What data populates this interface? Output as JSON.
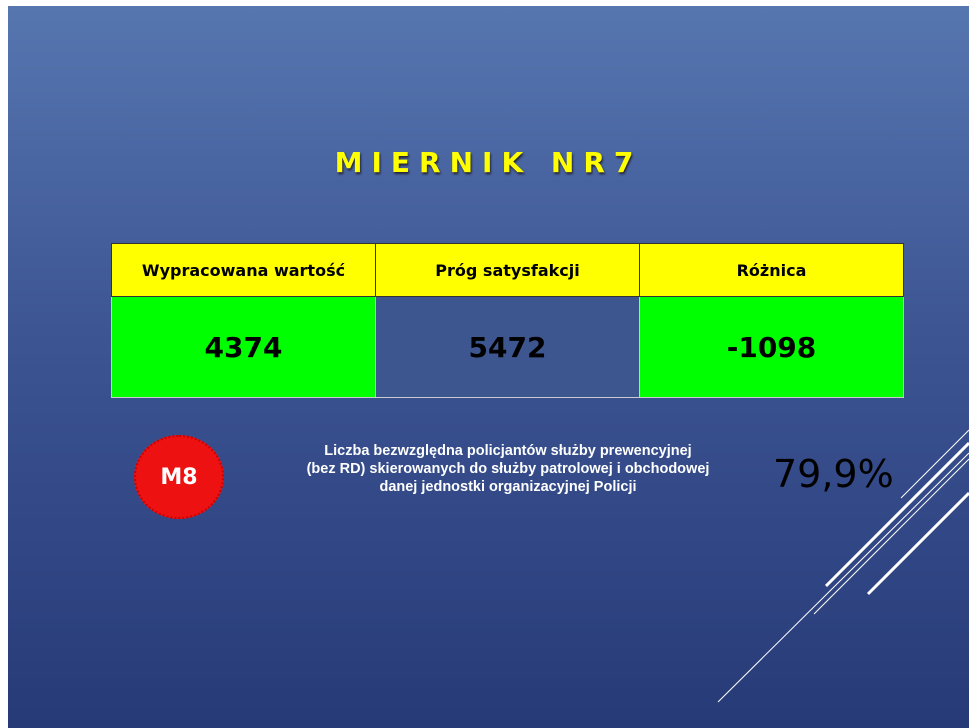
{
  "title": "MIERNIK NR7",
  "table": {
    "headers": [
      "Wypracowana wartość",
      "Próg satysfakcji",
      "Różnica"
    ],
    "rows": [
      [
        "4374",
        "5472",
        "-1098"
      ]
    ]
  },
  "badge": "M8",
  "description": [
    "Liczba bezwzględna policjantów służby prewencyjnej",
    "(bez RD) skierowanych do służby patrolowej i obchodowej",
    "danej jednostki organizacyjnej Policji"
  ],
  "percentage": "79,9%"
}
